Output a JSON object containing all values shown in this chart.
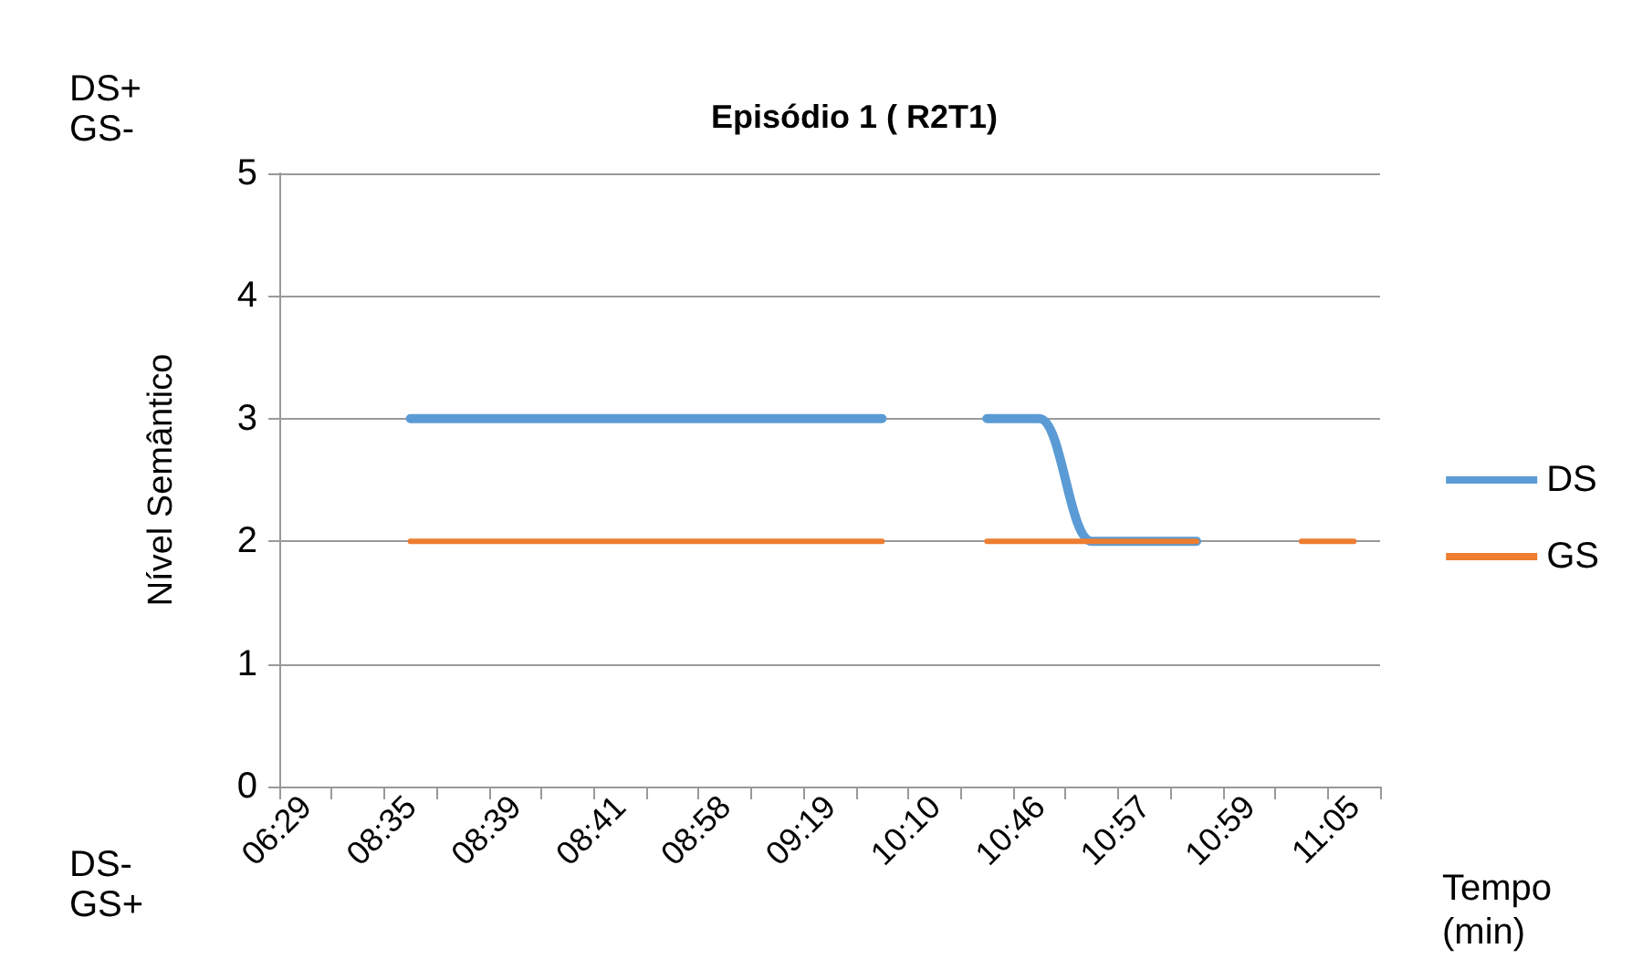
{
  "chart_data": {
    "type": "line",
    "title": "Episódio 1 ( R2T1)",
    "xlabel": "Tempo\n(min)",
    "ylabel": "Nível Semântico",
    "categories": [
      "06:29",
      null,
      "08:35",
      null,
      "08:39",
      null,
      "08:41",
      null,
      "08:58",
      null,
      "09:19",
      null,
      "10:10",
      null,
      "10:46",
      null,
      "10:57",
      null,
      "10:59",
      null,
      "11:05"
    ],
    "series": [
      {
        "name": "DS",
        "color": "#5b9bd5",
        "values": [
          null,
          null,
          3,
          3,
          3,
          3,
          3,
          3,
          3,
          3,
          3,
          3,
          null,
          3,
          3,
          2,
          2,
          2,
          null,
          null,
          null
        ]
      },
      {
        "name": "GS",
        "color": "#ed7d31",
        "values": [
          null,
          null,
          2,
          2,
          2,
          2,
          2,
          2,
          2,
          2,
          2,
          2,
          null,
          2,
          2,
          2,
          2,
          2,
          null,
          2,
          2
        ]
      }
    ],
    "ylim": [
      0,
      5
    ],
    "yticks": [
      0,
      1,
      2,
      3,
      4,
      5
    ],
    "grid": "y",
    "legend": "right",
    "marker": "none",
    "line_style": "solid",
    "annotations": [
      "DS+\nGS-",
      "DS-\nGS+"
    ]
  }
}
